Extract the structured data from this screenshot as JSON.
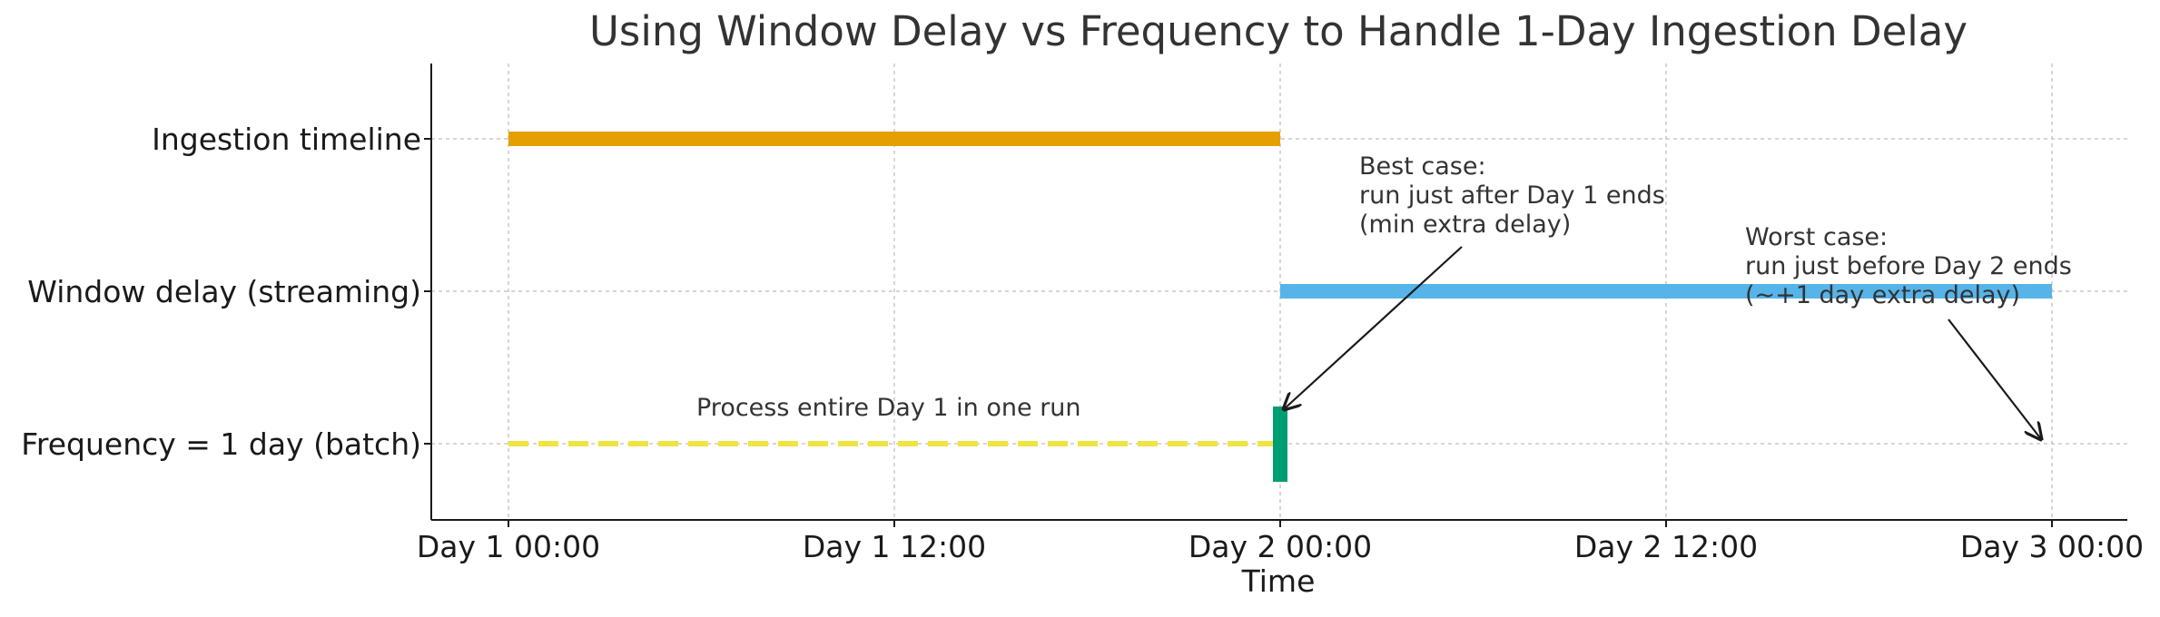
{
  "chart_data": {
    "type": "timeline",
    "title": "Using Window Delay vs Frequency to Handle 1-Day Ingestion Delay",
    "xlabel": "Time",
    "ylabel": "",
    "x_unit": "hours",
    "xlim": [
      "Day 1 00:00",
      "Day 3 02:00"
    ],
    "x_ticks": [
      "Day 1 00:00",
      "Day 1 12:00",
      "Day 2 00:00",
      "Day 2 12:00",
      "Day 3 00:00"
    ],
    "y_categories": [
      "Ingestion timeline",
      "Window delay (streaming)",
      "Frequency = 1 day (batch)"
    ],
    "grid": true,
    "series": [
      {
        "category": "Ingestion timeline",
        "start": "Day 1 00:00",
        "end": "Day 2 00:00",
        "style": "solid",
        "color": "#E69F00"
      },
      {
        "category": "Window delay (streaming)",
        "start": "Day 2 00:00",
        "end": "Day 3 00:00",
        "style": "solid",
        "color": "#56B4E9"
      },
      {
        "category": "Frequency = 1 day (batch)",
        "start": "Day 1 00:00",
        "end": "Day 2 00:00",
        "style": "dashed",
        "color": "#F0E442"
      }
    ],
    "markers": [
      {
        "category": "Frequency = 1 day (batch)",
        "at": "Day 2 00:00",
        "type": "vertical-bar",
        "color": "#009E73"
      }
    ],
    "annotations": [
      {
        "name": "process-label",
        "lines": [
          "Process entire Day 1 in one run"
        ]
      },
      {
        "name": "best-case",
        "lines": [
          "Best case:",
          "run just after Day 1 ends",
          "(min extra delay)"
        ],
        "points_to": "Day 2 00:00"
      },
      {
        "name": "worst-case",
        "lines": [
          "Worst case:",
          "run just before Day 2 ends",
          "(~+1 day extra delay)"
        ],
        "points_to": "Day 3 00:00"
      }
    ]
  }
}
